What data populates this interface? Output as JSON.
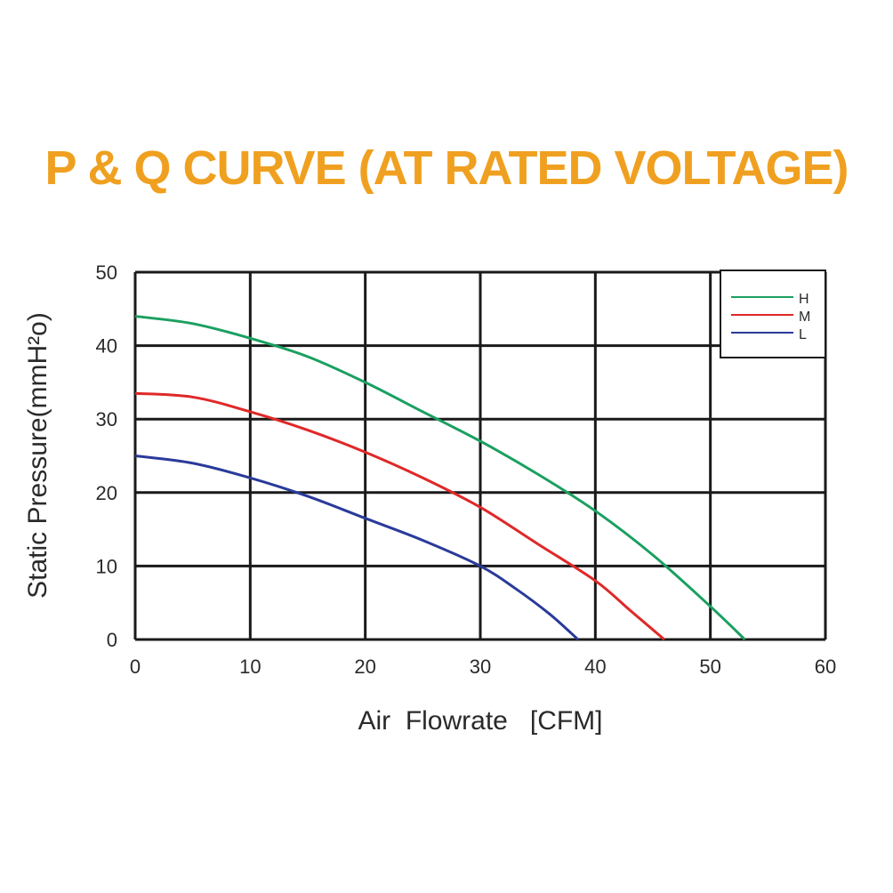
{
  "chart_data": {
    "type": "line",
    "title": "P & Q CURVE (AT RATED VOLTAGE)",
    "xlabel": "Air  Flowrate   [CFM]",
    "ylabel": "Static Pressure(mmH²o)",
    "xlim": [
      0,
      60
    ],
    "ylim": [
      0,
      50
    ],
    "xticks": [
      0,
      10,
      20,
      30,
      40,
      50,
      60
    ],
    "yticks": [
      0,
      10,
      20,
      30,
      40,
      50
    ],
    "grid": true,
    "legend_position": "top-right",
    "series": [
      {
        "name": "H",
        "color": "#1aa060",
        "x": [
          0,
          5,
          10,
          15,
          20,
          25,
          30,
          35,
          40,
          45,
          50,
          53
        ],
        "y": [
          44,
          43,
          41,
          38.5,
          35,
          31,
          27,
          22.5,
          17.5,
          11.5,
          4.5,
          0
        ]
      },
      {
        "name": "M",
        "color": "#e02828",
        "x": [
          0,
          5,
          10,
          15,
          20,
          25,
          30,
          35,
          40,
          43,
          46
        ],
        "y": [
          33.5,
          33,
          31,
          28.5,
          25.5,
          22,
          18,
          13,
          8,
          4,
          0
        ]
      },
      {
        "name": "L",
        "color": "#2a3a9a",
        "x": [
          0,
          5,
          10,
          15,
          20,
          25,
          30,
          33,
          36,
          38.5
        ],
        "y": [
          25,
          24,
          22,
          19.5,
          16.5,
          13.5,
          10,
          7,
          3.5,
          0
        ]
      }
    ]
  }
}
